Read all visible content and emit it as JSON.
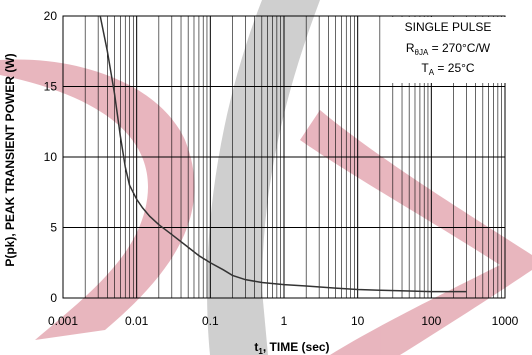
{
  "chart_data": {
    "type": "line",
    "x_scale": "log",
    "xlim": [
      0.001,
      1000
    ],
    "ylim": [
      0,
      20
    ],
    "x_ticks": [
      0.001,
      0.01,
      0.1,
      1,
      10,
      100,
      1000
    ],
    "x_tick_labels": [
      "0.001",
      "0.01",
      "0.1",
      "1",
      "10",
      "100",
      "1000"
    ],
    "y_ticks": [
      0,
      5,
      10,
      15,
      20
    ],
    "y_tick_labels": [
      "0",
      "5",
      "10",
      "15",
      "20"
    ],
    "grid": true,
    "xlabel": {
      "main": "t",
      "sub": "1",
      "rest": ", TIME (sec)"
    },
    "ylabel": "P(pk), PEAK TRANSIENT POWER (W)",
    "annotation": {
      "line1": "SINGLE PULSE",
      "line2_main": "R",
      "line2_sub": "θJA",
      "line2_rest": " = 270°C/W",
      "line3_main": "T",
      "line3_sub": "A",
      "line3_rest": " = 25°C"
    },
    "series": [
      {
        "color": "#333333",
        "points": [
          [
            0.0032,
            20
          ],
          [
            0.004,
            17.5
          ],
          [
            0.005,
            14.5
          ],
          [
            0.006,
            11.5
          ],
          [
            0.007,
            9.3
          ],
          [
            0.008,
            8.0
          ],
          [
            0.01,
            7.0
          ],
          [
            0.012,
            6.4
          ],
          [
            0.015,
            5.8
          ],
          [
            0.02,
            5.2
          ],
          [
            0.03,
            4.5
          ],
          [
            0.05,
            3.6
          ],
          [
            0.07,
            3.0
          ],
          [
            0.1,
            2.5
          ],
          [
            0.15,
            2.0
          ],
          [
            0.2,
            1.6
          ],
          [
            0.3,
            1.3
          ],
          [
            0.5,
            1.1
          ],
          [
            1,
            0.95
          ],
          [
            2,
            0.85
          ],
          [
            5,
            0.7
          ],
          [
            10,
            0.6
          ],
          [
            20,
            0.55
          ],
          [
            50,
            0.5
          ],
          [
            100,
            0.45
          ],
          [
            300,
            0.45
          ]
        ]
      }
    ]
  },
  "colors": {
    "watermark_red": "#d67a89",
    "watermark_gray": "#a8a8a8",
    "grid": "#000000",
    "curve": "#333333"
  }
}
